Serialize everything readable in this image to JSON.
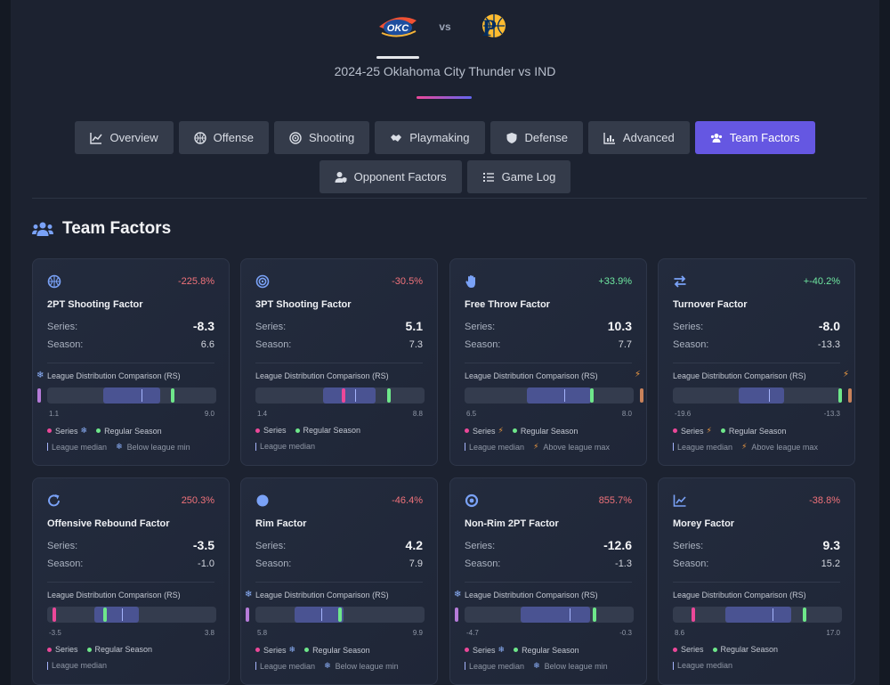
{
  "header": {
    "team_logo_text": "OKC",
    "vs": "vs",
    "opponent_logo_text": "P",
    "title": "2024-25 Oklahoma City Thunder vs IND"
  },
  "tabs": [
    {
      "label": "Overview",
      "icon": "chart-line-icon"
    },
    {
      "label": "Offense",
      "icon": "basketball-icon"
    },
    {
      "label": "Shooting",
      "icon": "target-icon"
    },
    {
      "label": "Playmaking",
      "icon": "handshake-icon"
    },
    {
      "label": "Defense",
      "icon": "shield-icon"
    },
    {
      "label": "Advanced",
      "icon": "chart-bar-icon"
    },
    {
      "label": "Team Factors",
      "icon": "users-icon",
      "active": true
    },
    {
      "label": "Opponent Factors",
      "icon": "user-shield-icon"
    },
    {
      "label": "Game Log",
      "icon": "list-icon"
    }
  ],
  "section": {
    "title": "Team Factors",
    "icon": "users-icon"
  },
  "labels": {
    "series": "Series:",
    "season": "Season:",
    "dist_title": "League Distribution Comparison (RS)",
    "legend_series": "Series",
    "legend_season": "Regular Season",
    "legend_median": "League median",
    "legend_below": "Below league min",
    "legend_above": "Above league max"
  },
  "colors": {
    "accent": "#6557e2",
    "series_marker": "#ec4899",
    "season_marker": "#6ee78a",
    "negative": "#f0727a",
    "positive": "#6ee7a0"
  },
  "cards": [
    {
      "name": "2PT Shooting Factor",
      "icon": "basketball-icon",
      "pct": "-225.8%",
      "pct_sign": "neg",
      "series": "-8.3",
      "season": "6.6",
      "min": "1.1",
      "max": "9.0",
      "outlier": "below",
      "dist": {
        "q1": 0.33,
        "q3": 0.67,
        "median": 0.56,
        "season": 0.74
      }
    },
    {
      "name": "3PT Shooting Factor",
      "icon": "target-icon",
      "pct": "-30.5%",
      "pct_sign": "neg",
      "series": "5.1",
      "season": "7.3",
      "min": "1.4",
      "max": "8.8",
      "outlier": "none",
      "dist": {
        "q1": 0.4,
        "q3": 0.71,
        "median": 0.59,
        "series": 0.52,
        "season": 0.79
      }
    },
    {
      "name": "Free Throw Factor",
      "icon": "hand-icon",
      "pct": "+33.9%",
      "pct_sign": "pos",
      "series": "10.3",
      "season": "7.7",
      "min": "6.5",
      "max": "8.0",
      "outlier": "above",
      "dist": {
        "q1": 0.37,
        "q3": 0.75,
        "median": 0.59,
        "season": 0.75
      }
    },
    {
      "name": "Turnover Factor",
      "icon": "exchange-icon",
      "pct": "+-40.2%",
      "pct_sign": "pos",
      "series": "-8.0",
      "season": "-13.3",
      "min": "-19.6",
      "max": "-13.3",
      "outlier": "above",
      "dist": {
        "q1": 0.39,
        "q3": 0.66,
        "median": 0.57,
        "season": 0.99
      }
    },
    {
      "name": "Offensive Rebound Factor",
      "icon": "rotate-icon",
      "pct": "250.3%",
      "pct_sign": "neg",
      "series": "-3.5",
      "season": "-1.0",
      "min": "-3.5",
      "max": "3.8",
      "outlier": "none",
      "dist": {
        "q1": 0.28,
        "q3": 0.54,
        "median": 0.44,
        "series": 0.04,
        "season": 0.34
      }
    },
    {
      "name": "Rim Factor",
      "icon": "circle-icon",
      "pct": "-46.4%",
      "pct_sign": "neg",
      "series": "4.2",
      "season": "7.9",
      "min": "5.8",
      "max": "9.9",
      "outlier": "below",
      "dist": {
        "q1": 0.23,
        "q3": 0.52,
        "median": 0.39,
        "season": 0.5
      }
    },
    {
      "name": "Non-Rim 2PT Factor",
      "icon": "dot-circle-icon",
      "pct": "855.7%",
      "pct_sign": "neg",
      "series": "-12.6",
      "season": "-1.3",
      "min": "-4.7",
      "max": "-0.3",
      "outlier": "below",
      "dist": {
        "q1": 0.33,
        "q3": 0.74,
        "median": 0.62,
        "season": 0.77
      }
    },
    {
      "name": "Morey Factor",
      "icon": "chart-line-icon",
      "pct": "-38.8%",
      "pct_sign": "neg",
      "series": "9.3",
      "season": "15.2",
      "min": "8.6",
      "max": "17.0",
      "outlier": "none",
      "dist": {
        "q1": 0.31,
        "q3": 0.7,
        "median": 0.59,
        "series": 0.12,
        "season": 0.78
      }
    }
  ]
}
